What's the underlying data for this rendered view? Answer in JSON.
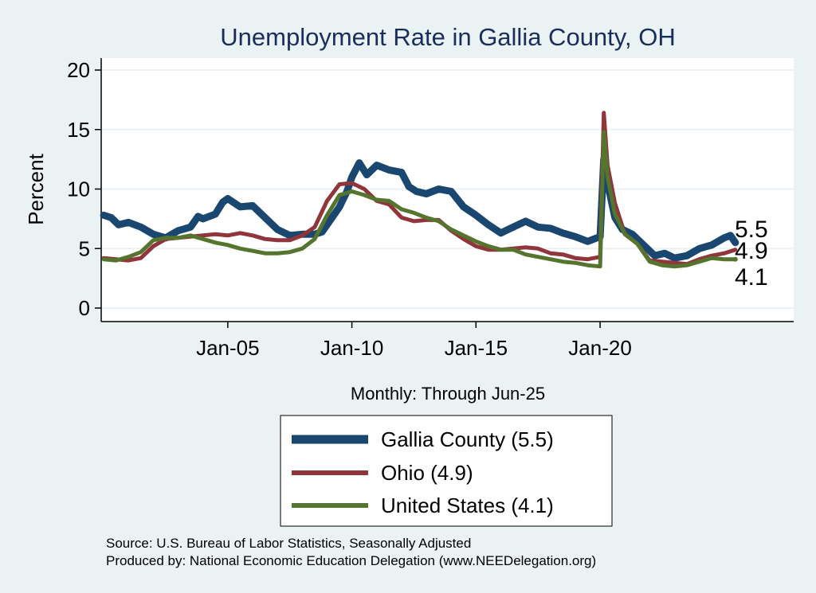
{
  "chart_data": {
    "type": "line",
    "title": "Unemployment Rate in Gallia  County, OH",
    "ylabel": "Percent",
    "xlabel": "Monthly: Through Jun-25",
    "ylim": [
      0,
      20
    ],
    "yticks": [
      "0",
      "5",
      "10",
      "15",
      "20"
    ],
    "xticks": [
      {
        "label": "Jan-05",
        "x": 2005.0
      },
      {
        "label": "Jan-10",
        "x": 2010.0
      },
      {
        "label": "Jan-15",
        "x": 2015.0
      },
      {
        "label": "Jan-20",
        "x": 2020.0
      }
    ],
    "xlim": [
      1999.9,
      2027.8
    ],
    "grid": true,
    "legend_position": "bottom-center",
    "series": [
      {
        "name": "Gallia  County (5.5)",
        "color": "#1a476f",
        "end_label": "5.5",
        "points": [
          [
            2000.0,
            7.8
          ],
          [
            2000.3,
            7.6
          ],
          [
            2000.6,
            7.0
          ],
          [
            2001.0,
            7.2
          ],
          [
            2001.5,
            6.8
          ],
          [
            2002.0,
            6.2
          ],
          [
            2002.5,
            5.9
          ],
          [
            2003.0,
            6.5
          ],
          [
            2003.5,
            6.8
          ],
          [
            2003.8,
            7.7
          ],
          [
            2004.0,
            7.5
          ],
          [
            2004.5,
            7.9
          ],
          [
            2004.8,
            8.9
          ],
          [
            2005.0,
            9.2
          ],
          [
            2005.5,
            8.5
          ],
          [
            2006.0,
            8.6
          ],
          [
            2006.5,
            7.6
          ],
          [
            2007.0,
            6.6
          ],
          [
            2007.5,
            6.1
          ],
          [
            2008.0,
            6.2
          ],
          [
            2008.5,
            6.2
          ],
          [
            2008.8,
            6.4
          ],
          [
            2009.0,
            7.0
          ],
          [
            2009.5,
            8.5
          ],
          [
            2009.8,
            9.8
          ],
          [
            2010.0,
            11.0
          ],
          [
            2010.3,
            12.2
          ],
          [
            2010.6,
            11.2
          ],
          [
            2011.0,
            12.0
          ],
          [
            2011.5,
            11.6
          ],
          [
            2012.0,
            11.4
          ],
          [
            2012.3,
            10.2
          ],
          [
            2012.6,
            9.8
          ],
          [
            2013.0,
            9.6
          ],
          [
            2013.5,
            10.0
          ],
          [
            2014.0,
            9.8
          ],
          [
            2014.5,
            8.5
          ],
          [
            2015.0,
            7.8
          ],
          [
            2015.5,
            7.0
          ],
          [
            2016.0,
            6.3
          ],
          [
            2016.5,
            6.8
          ],
          [
            2017.0,
            7.3
          ],
          [
            2017.5,
            6.8
          ],
          [
            2018.0,
            6.7
          ],
          [
            2018.5,
            6.3
          ],
          [
            2019.0,
            6.0
          ],
          [
            2019.5,
            5.6
          ],
          [
            2020.0,
            6.0
          ],
          [
            2020.15,
            12.5
          ],
          [
            2020.3,
            10.5
          ],
          [
            2020.6,
            7.6
          ],
          [
            2020.9,
            6.6
          ],
          [
            2021.3,
            6.2
          ],
          [
            2021.8,
            5.2
          ],
          [
            2022.2,
            4.4
          ],
          [
            2022.6,
            4.6
          ],
          [
            2023.0,
            4.2
          ],
          [
            2023.5,
            4.4
          ],
          [
            2024.0,
            5.0
          ],
          [
            2024.5,
            5.3
          ],
          [
            2025.0,
            5.9
          ],
          [
            2025.25,
            6.1
          ],
          [
            2025.45,
            5.5
          ]
        ]
      },
      {
        "name": "Ohio (4.9)",
        "color": "#90353b",
        "end_label": "4.9",
        "points": [
          [
            2000.0,
            4.2
          ],
          [
            2000.5,
            4.1
          ],
          [
            2001.0,
            4.0
          ],
          [
            2001.5,
            4.2
          ],
          [
            2002.0,
            5.2
          ],
          [
            2002.5,
            5.8
          ],
          [
            2003.0,
            5.9
          ],
          [
            2003.5,
            6.0
          ],
          [
            2004.0,
            6.1
          ],
          [
            2004.5,
            6.2
          ],
          [
            2005.0,
            6.1
          ],
          [
            2005.5,
            6.3
          ],
          [
            2006.0,
            6.1
          ],
          [
            2006.5,
            5.8
          ],
          [
            2007.0,
            5.7
          ],
          [
            2007.5,
            5.7
          ],
          [
            2008.0,
            6.1
          ],
          [
            2008.5,
            6.8
          ],
          [
            2009.0,
            9.0
          ],
          [
            2009.5,
            10.4
          ],
          [
            2010.0,
            10.5
          ],
          [
            2010.5,
            10.0
          ],
          [
            2011.0,
            9.0
          ],
          [
            2011.5,
            8.7
          ],
          [
            2012.0,
            7.6
          ],
          [
            2012.5,
            7.3
          ],
          [
            2013.0,
            7.4
          ],
          [
            2013.5,
            7.4
          ],
          [
            2014.0,
            6.5
          ],
          [
            2014.5,
            5.8
          ],
          [
            2015.0,
            5.2
          ],
          [
            2015.5,
            4.9
          ],
          [
            2016.0,
            4.9
          ],
          [
            2016.5,
            5.0
          ],
          [
            2017.0,
            5.1
          ],
          [
            2017.5,
            5.0
          ],
          [
            2018.0,
            4.6
          ],
          [
            2018.5,
            4.5
          ],
          [
            2019.0,
            4.2
          ],
          [
            2019.5,
            4.1
          ],
          [
            2020.0,
            4.3
          ],
          [
            2020.15,
            16.4
          ],
          [
            2020.3,
            12.0
          ],
          [
            2020.6,
            8.8
          ],
          [
            2021.0,
            6.2
          ],
          [
            2021.5,
            5.4
          ],
          [
            2022.0,
            4.0
          ],
          [
            2022.5,
            3.9
          ],
          [
            2023.0,
            3.8
          ],
          [
            2023.5,
            3.7
          ],
          [
            2024.0,
            4.1
          ],
          [
            2024.5,
            4.4
          ],
          [
            2025.0,
            4.6
          ],
          [
            2025.45,
            4.9
          ]
        ]
      },
      {
        "name": "United States (4.1)",
        "color": "#55752f",
        "end_label": "4.1",
        "points": [
          [
            2000.0,
            4.1
          ],
          [
            2000.5,
            4.0
          ],
          [
            2001.0,
            4.3
          ],
          [
            2001.5,
            4.7
          ],
          [
            2002.0,
            5.7
          ],
          [
            2002.5,
            5.9
          ],
          [
            2003.0,
            5.9
          ],
          [
            2003.5,
            6.1
          ],
          [
            2004.0,
            5.8
          ],
          [
            2004.5,
            5.5
          ],
          [
            2005.0,
            5.3
          ],
          [
            2005.5,
            5.0
          ],
          [
            2006.0,
            4.8
          ],
          [
            2006.5,
            4.6
          ],
          [
            2007.0,
            4.6
          ],
          [
            2007.5,
            4.7
          ],
          [
            2008.0,
            5.0
          ],
          [
            2008.5,
            5.8
          ],
          [
            2009.0,
            7.8
          ],
          [
            2009.5,
            9.5
          ],
          [
            2010.0,
            9.8
          ],
          [
            2010.5,
            9.5
          ],
          [
            2011.0,
            9.1
          ],
          [
            2011.5,
            9.0
          ],
          [
            2012.0,
            8.3
          ],
          [
            2012.5,
            8.0
          ],
          [
            2013.0,
            7.6
          ],
          [
            2013.5,
            7.3
          ],
          [
            2014.0,
            6.6
          ],
          [
            2014.5,
            6.1
          ],
          [
            2015.0,
            5.6
          ],
          [
            2015.5,
            5.2
          ],
          [
            2016.0,
            4.9
          ],
          [
            2016.5,
            4.9
          ],
          [
            2017.0,
            4.5
          ],
          [
            2017.5,
            4.3
          ],
          [
            2018.0,
            4.1
          ],
          [
            2018.5,
            3.9
          ],
          [
            2019.0,
            3.8
          ],
          [
            2019.5,
            3.6
          ],
          [
            2020.0,
            3.5
          ],
          [
            2020.15,
            14.8
          ],
          [
            2020.3,
            11.0
          ],
          [
            2020.6,
            7.9
          ],
          [
            2021.0,
            6.2
          ],
          [
            2021.5,
            5.4
          ],
          [
            2022.0,
            3.9
          ],
          [
            2022.5,
            3.6
          ],
          [
            2023.0,
            3.5
          ],
          [
            2023.5,
            3.6
          ],
          [
            2024.0,
            3.9
          ],
          [
            2024.5,
            4.2
          ],
          [
            2025.0,
            4.1
          ],
          [
            2025.45,
            4.1
          ]
        ]
      }
    ]
  },
  "source_lines": [
    "Source: U.S. Bureau of Labor Statistics, Seasonally Adjusted",
    "Produced by: National Economic Education Delegation (www.NEEDelegation.org)"
  ]
}
